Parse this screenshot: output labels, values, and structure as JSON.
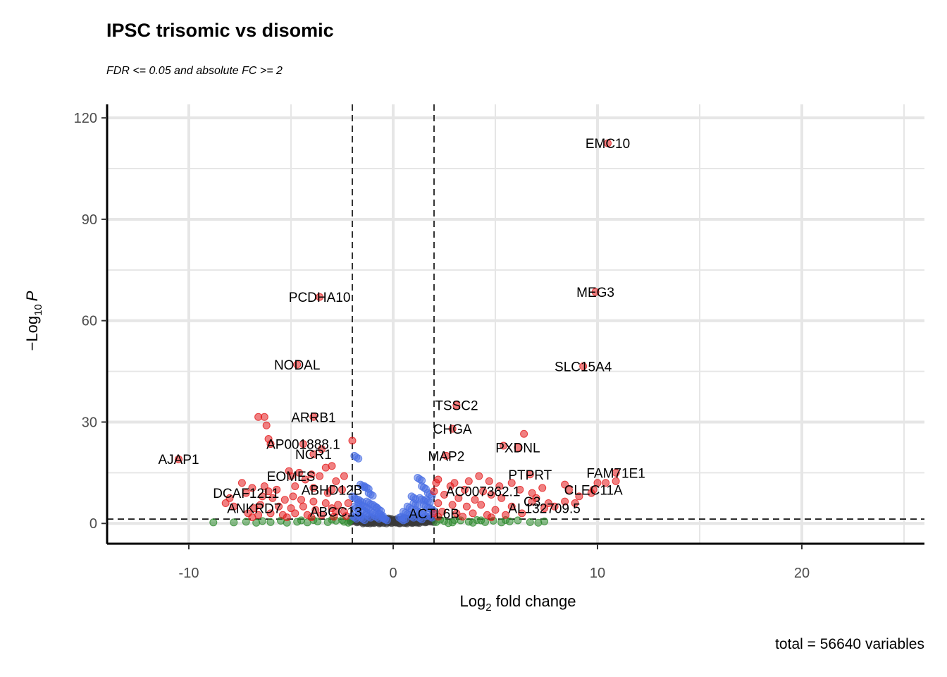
{
  "chart_data": {
    "type": "scatter",
    "title": "IPSC trisomic vs disomic",
    "subtitle": "FDR <= 0.05 and absolute FC >= 2",
    "caption": "total = 56640 variables",
    "xlabel_main": "Log",
    "xlabel_sub": "2",
    "xlabel_tail": " fold change",
    "ylabel_main": "−Log",
    "ylabel_sub": "10",
    "ylabel_tail": "P",
    "xlim": [
      -14,
      26
    ],
    "ylim": [
      -6,
      124
    ],
    "xticks": [
      -10,
      0,
      10,
      20
    ],
    "yticks": [
      0,
      30,
      60,
      90,
      120
    ],
    "xtick_labels": [
      "-10",
      "0",
      "10",
      "20"
    ],
    "ytick_labels": [
      "0",
      "30",
      "60",
      "90",
      "120"
    ],
    "grid": true,
    "vlines": [
      -2,
      2
    ],
    "hline": 1.3,
    "colors": {
      "significant": "#e31a1c",
      "p_only": "#4a6fe3",
      "fc_only": "#2e8b2e",
      "ns": "#3a3a3a"
    },
    "labeled_genes": [
      {
        "gene": "EMC10",
        "x": 10.5,
        "y": 112.5
      },
      {
        "gene": "MEG3",
        "x": 9.9,
        "y": 68.5
      },
      {
        "gene": "PCDHA10",
        "x": -3.6,
        "y": 67
      },
      {
        "gene": "SLC15A4",
        "x": 9.3,
        "y": 46.5
      },
      {
        "gene": "NODAL",
        "x": -4.7,
        "y": 47
      },
      {
        "gene": "TSSC2",
        "x": 3.1,
        "y": 35
      },
      {
        "gene": "ARRB1",
        "x": -3.9,
        "y": 31.5
      },
      {
        "gene": "CHGA",
        "x": 2.9,
        "y": 28
      },
      {
        "gene": "PXDNL",
        "x": 6.1,
        "y": 22.5
      },
      {
        "gene": "AP001888.1",
        "x": -4.4,
        "y": 23.5
      },
      {
        "gene": "NCR1",
        "x": -3.9,
        "y": 20.5
      },
      {
        "gene": "MAP2",
        "x": 2.6,
        "y": 20
      },
      {
        "gene": "AJAP1",
        "x": -10.5,
        "y": 19
      },
      {
        "gene": "FAM71E1",
        "x": 10.9,
        "y": 15
      },
      {
        "gene": "PTPRT",
        "x": 6.7,
        "y": 14.5
      },
      {
        "gene": "EOMES",
        "x": -5.0,
        "y": 14
      },
      {
        "gene": "CLEC11A",
        "x": 9.8,
        "y": 10
      },
      {
        "gene": "ABHD12B",
        "x": -3.0,
        "y": 10
      },
      {
        "gene": "AC007362.1",
        "x": 4.4,
        "y": 9.5
      },
      {
        "gene": "DCAF12L1",
        "x": -7.2,
        "y": 9
      },
      {
        "gene": "C3",
        "x": 6.8,
        "y": 6.5
      },
      {
        "gene": "AL132709.5",
        "x": 7.4,
        "y": 4.5
      },
      {
        "gene": "ANKRD7",
        "x": -6.8,
        "y": 4.5
      },
      {
        "gene": "ABCC13",
        "x": -2.8,
        "y": 3.5
      },
      {
        "gene": "ACTL6B",
        "x": 2.0,
        "y": 3.0
      }
    ],
    "other_significant": [
      {
        "x": -6.6,
        "y": 31.5
      },
      {
        "x": -6.3,
        "y": 31.5
      },
      {
        "x": -6.2,
        "y": 29
      },
      {
        "x": -6.1,
        "y": 25
      },
      {
        "x": -6.0,
        "y": 23.5
      },
      {
        "x": -3.5,
        "y": 22
      },
      {
        "x": -2.0,
        "y": 24.5
      },
      {
        "x": -3.0,
        "y": 17
      },
      {
        "x": -3.3,
        "y": 16.5
      },
      {
        "x": -5.1,
        "y": 15.5
      },
      {
        "x": -4.6,
        "y": 15
      },
      {
        "x": -4.0,
        "y": 14.5
      },
      {
        "x": -3.6,
        "y": 14
      },
      {
        "x": -2.4,
        "y": 14
      },
      {
        "x": -4.3,
        "y": 13
      },
      {
        "x": -2.8,
        "y": 12.5
      },
      {
        "x": -6.3,
        "y": 11
      },
      {
        "x": -6.1,
        "y": 9.5
      },
      {
        "x": -5.7,
        "y": 10
      },
      {
        "x": -4.8,
        "y": 11
      },
      {
        "x": -3.9,
        "y": 10.5
      },
      {
        "x": -3.2,
        "y": 9
      },
      {
        "x": -2.5,
        "y": 10
      },
      {
        "x": -7.4,
        "y": 12
      },
      {
        "x": -6.9,
        "y": 10.5
      },
      {
        "x": -6.4,
        "y": 8
      },
      {
        "x": -5.9,
        "y": 7.5
      },
      {
        "x": -5.3,
        "y": 7
      },
      {
        "x": -4.9,
        "y": 8
      },
      {
        "x": -4.5,
        "y": 7
      },
      {
        "x": -3.9,
        "y": 6.5
      },
      {
        "x": -3.3,
        "y": 6
      },
      {
        "x": -2.7,
        "y": 5.5
      },
      {
        "x": -2.2,
        "y": 6
      },
      {
        "x": -8.0,
        "y": 7.5
      },
      {
        "x": -8.2,
        "y": 6
      },
      {
        "x": -7.8,
        "y": 5
      },
      {
        "x": -6.5,
        "y": 5.5
      },
      {
        "x": -5.6,
        "y": 5
      },
      {
        "x": -5.0,
        "y": 4.5
      },
      {
        "x": -4.4,
        "y": 5
      },
      {
        "x": -3.8,
        "y": 4
      },
      {
        "x": -3.0,
        "y": 4.5
      },
      {
        "x": -2.4,
        "y": 3.5
      },
      {
        "x": -7.1,
        "y": 3
      },
      {
        "x": -6.6,
        "y": 2.5
      },
      {
        "x": -6.0,
        "y": 3
      },
      {
        "x": -5.4,
        "y": 2.5
      },
      {
        "x": -4.8,
        "y": 3
      },
      {
        "x": -4.2,
        "y": 2.5
      },
      {
        "x": -3.5,
        "y": 2.5
      },
      {
        "x": -2.9,
        "y": 2.0
      },
      {
        "x": -2.3,
        "y": 2.2
      },
      {
        "x": -6.9,
        "y": 1.8
      },
      {
        "x": -5.2,
        "y": 1.8
      },
      {
        "x": -4.0,
        "y": 1.8
      },
      {
        "x": 3.0,
        "y": 12
      },
      {
        "x": 2.2,
        "y": 13
      },
      {
        "x": 2.8,
        "y": 11
      },
      {
        "x": 3.7,
        "y": 12.5
      },
      {
        "x": 4.2,
        "y": 14
      },
      {
        "x": 4.7,
        "y": 12.5
      },
      {
        "x": 3.5,
        "y": 10
      },
      {
        "x": 4.8,
        "y": 8.5
      },
      {
        "x": 5.3,
        "y": 7.5
      },
      {
        "x": 2.5,
        "y": 8.5
      },
      {
        "x": 3.2,
        "y": 7.5
      },
      {
        "x": 4.0,
        "y": 7
      },
      {
        "x": 2.2,
        "y": 6
      },
      {
        "x": 2.9,
        "y": 5.5
      },
      {
        "x": 3.6,
        "y": 5
      },
      {
        "x": 4.3,
        "y": 5.5
      },
      {
        "x": 5.0,
        "y": 4
      },
      {
        "x": 5.8,
        "y": 5
      },
      {
        "x": 2.4,
        "y": 3.5
      },
      {
        "x": 3.1,
        "y": 3
      },
      {
        "x": 3.9,
        "y": 3
      },
      {
        "x": 4.6,
        "y": 2.5
      },
      {
        "x": 5.5,
        "y": 2.5
      },
      {
        "x": 6.3,
        "y": 3
      },
      {
        "x": 2.2,
        "y": 2.0
      },
      {
        "x": 3.4,
        "y": 2.0
      },
      {
        "x": 4.8,
        "y": 1.8
      },
      {
        "x": 6.4,
        "y": 26.5
      },
      {
        "x": 5.4,
        "y": 23
      },
      {
        "x": 6.2,
        "y": 10
      },
      {
        "x": 6.8,
        "y": 9
      },
      {
        "x": 7.3,
        "y": 10.5
      },
      {
        "x": 7.0,
        "y": 7.5
      },
      {
        "x": 7.6,
        "y": 6
      },
      {
        "x": 7.9,
        "y": 5
      },
      {
        "x": 8.4,
        "y": 11.5
      },
      {
        "x": 8.6,
        "y": 10
      },
      {
        "x": 8.4,
        "y": 6.5
      },
      {
        "x": 8.9,
        "y": 6
      },
      {
        "x": 9.1,
        "y": 8
      },
      {
        "x": 9.7,
        "y": 9
      },
      {
        "x": 10.0,
        "y": 12
      },
      {
        "x": 10.4,
        "y": 12
      },
      {
        "x": 10.9,
        "y": 12.5
      },
      {
        "x": 5.8,
        "y": 12
      },
      {
        "x": 5.2,
        "y": 11
      },
      {
        "x": 2.1,
        "y": 12
      },
      {
        "x": 2.0,
        "y": 9.5
      }
    ],
    "pvalue_only": [
      {
        "x": -1.8,
        "y": 20
      },
      {
        "x": -1.5,
        "y": 11.5
      },
      {
        "x": -1.3,
        "y": 11
      },
      {
        "x": -1.1,
        "y": 9
      },
      {
        "x": -1.9,
        "y": 8
      },
      {
        "x": -1.6,
        "y": 7
      },
      {
        "x": -1.2,
        "y": 6.5
      },
      {
        "x": -0.9,
        "y": 5.5
      },
      {
        "x": -0.7,
        "y": 4.5
      },
      {
        "x": -1.8,
        "y": 5
      },
      {
        "x": -1.4,
        "y": 4
      },
      {
        "x": -1.0,
        "y": 3.5
      },
      {
        "x": -0.6,
        "y": 3
      },
      {
        "x": -1.7,
        "y": 3
      },
      {
        "x": -1.2,
        "y": 2.5
      },
      {
        "x": -0.8,
        "y": 2.2
      },
      {
        "x": -0.5,
        "y": 2
      },
      {
        "x": -1.9,
        "y": 2.2
      },
      {
        "x": -1.5,
        "y": 1.8
      },
      {
        "x": -0.4,
        "y": 1.7
      },
      {
        "x": 1.3,
        "y": 13.5
      },
      {
        "x": 1.5,
        "y": 11
      },
      {
        "x": 1.8,
        "y": 9
      },
      {
        "x": 1.4,
        "y": 7.5
      },
      {
        "x": 1.1,
        "y": 6
      },
      {
        "x": 0.8,
        "y": 5
      },
      {
        "x": 1.6,
        "y": 5.5
      },
      {
        "x": 1.9,
        "y": 4.5
      },
      {
        "x": 1.2,
        "y": 4
      },
      {
        "x": 0.6,
        "y": 3.5
      },
      {
        "x": 1.5,
        "y": 3
      },
      {
        "x": 0.9,
        "y": 2.5
      },
      {
        "x": 1.8,
        "y": 2.5
      },
      {
        "x": 0.5,
        "y": 2
      },
      {
        "x": 1.3,
        "y": 2
      },
      {
        "x": 0.4,
        "y": 1.7
      },
      {
        "x": -1.6,
        "y": 6
      },
      {
        "x": -1.3,
        "y": 5
      },
      {
        "x": 1.0,
        "y": 8
      },
      {
        "x": 1.7,
        "y": 7
      }
    ],
    "fc_only": [
      {
        "x": -8.8,
        "y": 0.3
      },
      {
        "x": -7.8,
        "y": 0.3
      },
      {
        "x": -7.2,
        "y": 0.5
      },
      {
        "x": -6.7,
        "y": 0.2
      },
      {
        "x": -6.0,
        "y": 0.4
      },
      {
        "x": -5.2,
        "y": 0.2
      },
      {
        "x": -4.7,
        "y": 0.5
      },
      {
        "x": -4.2,
        "y": 0.3
      },
      {
        "x": -3.7,
        "y": 0.6
      },
      {
        "x": -3.2,
        "y": 0.4
      },
      {
        "x": -2.8,
        "y": 0.8
      },
      {
        "x": -2.4,
        "y": 0.5
      },
      {
        "x": -2.1,
        "y": 0.9
      },
      {
        "x": -5.5,
        "y": 0.8
      },
      {
        "x": -3.9,
        "y": 1.0
      },
      {
        "x": -3.0,
        "y": 1.1
      },
      {
        "x": -2.5,
        "y": 1.0
      },
      {
        "x": -4.5,
        "y": 0.9
      },
      {
        "x": -6.4,
        "y": 0.7
      },
      {
        "x": -2.2,
        "y": 0.2
      },
      {
        "x": 2.1,
        "y": 0.4
      },
      {
        "x": 2.5,
        "y": 0.7
      },
      {
        "x": 2.9,
        "y": 0.3
      },
      {
        "x": 3.3,
        "y": 0.9
      },
      {
        "x": 3.7,
        "y": 0.5
      },
      {
        "x": 4.1,
        "y": 1.0
      },
      {
        "x": 4.5,
        "y": 0.4
      },
      {
        "x": 4.9,
        "y": 0.8
      },
      {
        "x": 5.3,
        "y": 0.3
      },
      {
        "x": 5.7,
        "y": 0.6
      },
      {
        "x": 6.1,
        "y": 0.9
      },
      {
        "x": 6.7,
        "y": 0.4
      },
      {
        "x": 7.1,
        "y": 0.2
      },
      {
        "x": 7.4,
        "y": 0.6
      },
      {
        "x": 2.3,
        "y": 1.1
      },
      {
        "x": 3.0,
        "y": 1.0
      },
      {
        "x": 3.9,
        "y": 0.2
      },
      {
        "x": 4.3,
        "y": 0.9
      },
      {
        "x": 5.5,
        "y": 1.0
      },
      {
        "x": 2.7,
        "y": 0.1
      }
    ],
    "non_significant": [
      {
        "x": -1.9,
        "y": 0.5
      },
      {
        "x": -1.6,
        "y": 0.3
      },
      {
        "x": -1.4,
        "y": 0.9
      },
      {
        "x": -1.2,
        "y": 0.4
      },
      {
        "x": -1.0,
        "y": 1.1
      },
      {
        "x": -0.8,
        "y": 0.2
      },
      {
        "x": -0.6,
        "y": 0.7
      },
      {
        "x": -0.4,
        "y": 0.4
      },
      {
        "x": -0.2,
        "y": 1.0
      },
      {
        "x": 0.0,
        "y": 0.3
      },
      {
        "x": 0.2,
        "y": 0.8
      },
      {
        "x": 0.4,
        "y": 0.5
      },
      {
        "x": 0.6,
        "y": 1.1
      },
      {
        "x": 0.8,
        "y": 0.2
      },
      {
        "x": 1.0,
        "y": 0.6
      },
      {
        "x": 1.2,
        "y": 0.9
      },
      {
        "x": 1.4,
        "y": 0.3
      },
      {
        "x": 1.6,
        "y": 0.7
      },
      {
        "x": 1.8,
        "y": 0.4
      },
      {
        "x": -1.7,
        "y": 1.0
      },
      {
        "x": -1.1,
        "y": 0.1
      },
      {
        "x": -0.5,
        "y": 0.0
      },
      {
        "x": 0.5,
        "y": 0.0
      },
      {
        "x": 1.1,
        "y": 0.1
      },
      {
        "x": 1.7,
        "y": 1.0
      },
      {
        "x": -0.9,
        "y": 0.6
      },
      {
        "x": 0.9,
        "y": 0.6
      },
      {
        "x": -0.1,
        "y": 0.5
      },
      {
        "x": 0.1,
        "y": 0.1
      },
      {
        "x": -1.3,
        "y": 0.0
      }
    ]
  }
}
